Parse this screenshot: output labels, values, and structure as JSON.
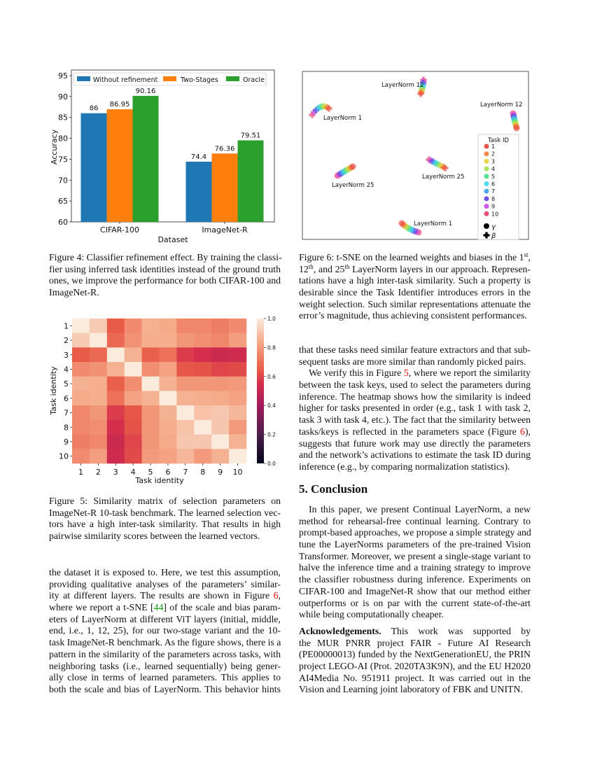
{
  "colors": {
    "without_refinement": "#1f77b4",
    "two_stages": "#ff7f0e",
    "oracle": "#2ca02c",
    "reference_link": "#e00000",
    "citation_link": "#00a000",
    "task_colors": [
      "#e8413c",
      "#f07a35",
      "#e8d23a",
      "#a3e048",
      "#3fe08a",
      "#3ad9ec",
      "#3d9bea",
      "#5d3fe0",
      "#c948e8",
      "#e8386e"
    ]
  },
  "chart_data": [
    {
      "type": "bar",
      "xlabel": "Dataset",
      "ylabel": "Accuracy",
      "ylim": [
        60,
        95
      ],
      "yticks": [
        "60",
        "65",
        "70",
        "75",
        "80",
        "85",
        "90",
        "95"
      ],
      "categories": [
        "CIFAR-100",
        "ImageNet-R"
      ],
      "legend_position": "top",
      "series": [
        {
          "name": "Without refinement",
          "values": [
            86,
            74.4
          ],
          "labels": [
            "86",
            "74.4"
          ]
        },
        {
          "name": "Two-Stages",
          "values": [
            86.95,
            76.36
          ],
          "labels": [
            "86.95",
            "76.36"
          ]
        },
        {
          "name": "Oracle",
          "values": [
            90.16,
            79.51
          ],
          "labels": [
            "90.16",
            "79.51"
          ]
        }
      ]
    },
    {
      "type": "scatter",
      "legend_title": "Task ID",
      "legend_position": "right",
      "task_ids": [
        "1",
        "2",
        "3",
        "4",
        "5",
        "6",
        "7",
        "8",
        "9",
        "10"
      ],
      "marker_legend": [
        {
          "marker": "circle",
          "label": "γ"
        },
        {
          "marker": "plus",
          "label": "β"
        }
      ],
      "clusters": [
        {
          "label": "LayerNorm 12",
          "marker": "plus"
        },
        {
          "label": "LayerNorm 1",
          "marker": "plus"
        },
        {
          "label": "LayerNorm 12",
          "marker": "circle"
        },
        {
          "label": "LayerNorm 25",
          "marker": "plus"
        },
        {
          "label": "LayerNorm 25",
          "marker": "circle"
        },
        {
          "label": "LayerNorm 1",
          "marker": "circle"
        }
      ]
    },
    {
      "type": "heatmap",
      "xlabel": "Task identity",
      "ylabel": "Task identity",
      "x_categories": [
        "1",
        "2",
        "3",
        "4",
        "5",
        "6",
        "7",
        "8",
        "9",
        "10"
      ],
      "y_categories": [
        "1",
        "2",
        "3",
        "4",
        "5",
        "6",
        "7",
        "8",
        "9",
        "10"
      ],
      "colorbar_range": [
        0.0,
        1.0
      ],
      "colorbar_ticks": [
        "0.0",
        "0.2",
        "0.4",
        "0.6",
        "0.8",
        "1.0"
      ],
      "colormap": "rocket",
      "values": [
        [
          1.0,
          0.92,
          0.65,
          0.76,
          0.86,
          0.84,
          0.75,
          0.75,
          0.73,
          0.76
        ],
        [
          0.92,
          1.0,
          0.68,
          0.78,
          0.85,
          0.85,
          0.79,
          0.77,
          0.75,
          0.81
        ],
        [
          0.65,
          0.68,
          1.0,
          0.86,
          0.66,
          0.7,
          0.58,
          0.55,
          0.52,
          0.53
        ],
        [
          0.76,
          0.78,
          0.86,
          1.0,
          0.77,
          0.82,
          0.64,
          0.63,
          0.6,
          0.61
        ],
        [
          0.86,
          0.85,
          0.66,
          0.77,
          1.0,
          0.86,
          0.79,
          0.79,
          0.79,
          0.8
        ],
        [
          0.84,
          0.85,
          0.7,
          0.82,
          0.86,
          1.0,
          0.86,
          0.85,
          0.84,
          0.82
        ],
        [
          0.75,
          0.79,
          0.58,
          0.64,
          0.79,
          0.86,
          1.0,
          0.9,
          0.91,
          0.87
        ],
        [
          0.75,
          0.77,
          0.55,
          0.63,
          0.79,
          0.85,
          0.9,
          1.0,
          0.91,
          0.8
        ],
        [
          0.73,
          0.75,
          0.52,
          0.6,
          0.79,
          0.84,
          0.91,
          0.91,
          1.0,
          0.86
        ],
        [
          0.76,
          0.81,
          0.53,
          0.61,
          0.8,
          0.82,
          0.87,
          0.8,
          0.86,
          1.0
        ]
      ]
    }
  ],
  "fig4_caption": [
    [
      "Figure 4: Classifier refinement effect. By training the classi-",
      "fier using inferred task identities instead of the ground truth",
      "ones, we improve the performance for both CIFAR-100 and",
      "ImageNet-R."
    ]
  ],
  "fig6_caption": [
    [
      [
        {
          "t": "Figure 6: t-SNE on the learned weights and biases in the 1"
        },
        {
          "t": "st",
          "c": "sup"
        },
        {
          "t": ","
        }
      ],
      [
        {
          "t": "12"
        },
        {
          "t": "th",
          "c": "sup"
        },
        {
          "t": ", and 25"
        },
        {
          "t": "th",
          "c": "sup"
        },
        {
          "t": " LayerNorm layers in our approach. Represen-"
        }
      ],
      "tations have a high inter-task similarity. Such a property is",
      "desirable since the Task Identifier introduces errors in the",
      "weight selection. Such similar representations attenuate the",
      "error’s magnitude, thus achieving consistent performances."
    ]
  ],
  "fig5_caption": [
    [
      "Figure 5: Similarity matrix of selection parameters on",
      "ImageNet-R 10-task benchmark. The learned selection vec-",
      "tors have a high inter-task similarity. That results in high",
      "pairwise similarity scores between the learned vectors."
    ]
  ],
  "left_body": [
    [
      "the dataset it is exposed to. Here, we test this assumption,",
      "providing qualitative analyses of the parameters’ similar-",
      [
        {
          "t": "ity at different layers. The results are shown in Figure "
        },
        {
          "t": "6",
          "c": "ref"
        },
        {
          "t": ","
        }
      ],
      [
        {
          "t": "where we report a t-SNE ["
        },
        {
          "t": "44",
          "c": "cite"
        },
        {
          "t": "] of the scale and bias param-"
        }
      ],
      "eters of LayerNorm at different ViT layers (initial, middle,",
      "end, i.e., 1, 12, 25), for our two-stage variant and the 10-",
      "task ImageNet-R benchmark. As the figure shows, there is a",
      "pattern in the similarity of the parameters across tasks, with",
      "neighboring tasks (i.e., learned sequentially) being gener-",
      "ally close in terms of learned parameters. This applies to",
      "both the scale and bias of LayerNorm. This behavior hints"
    ]
  ],
  "right_body_cont": [
    [
      "that these tasks need similar feature extractors and that sub-",
      "sequent tasks are more similar than randomly picked pairs."
    ]
  ],
  "right_body_verify": [
    [
      [
        {
          "t": "We verify this in Figure "
        },
        {
          "t": "5",
          "c": "ref"
        },
        {
          "t": ", where we report the similarity"
        }
      ],
      "between the task keys, used to select the parameters during",
      "inference. The heatmap shows how the similarity is indeed",
      "higher for tasks presented in order (e.g., task 1 with task 2,",
      "task 3 with task 4, etc.). The fact that the similarity between",
      [
        {
          "t": "tasks/keys is reflected in the parameters space (Figure "
        },
        {
          "t": "6",
          "c": "ref"
        },
        {
          "t": "),"
        }
      ],
      "suggests that future work may use directly the parameters",
      "and the network’s activations to estimate the task ID during",
      "inference (e.g., by comparing normalization statistics)."
    ]
  ],
  "conclusion_heading": "5. Conclusion",
  "conclusion_body": [
    [
      "In this paper, we present Continual LayerNorm, a new",
      "method for rehearsal-free continual learning. Contrary to",
      "prompt-based approaches, we propose a simple strategy and",
      "tune the LayerNorms parameters of the pre-trained Vision",
      "Transformer. Moreover, we present a single-stage variant to",
      "halve the inference time and a training strategy to improve",
      "the classifier robustness during inference. Experiments on",
      "CIFAR-100 and ImageNet-R show that our method either",
      "outperforms or is on par with the current state-of-the-art",
      "while being computationally cheaper."
    ]
  ],
  "acknowledgements": [
    [
      [
        {
          "t": "Acknowledgements.",
          "c": "bold"
        },
        {
          "t": "      This work was supported by"
        }
      ],
      "the MUR PNRR project FAIR - Future AI Research",
      "(PE00000013) funded by the NextGenerationEU, the PRIN",
      "project LEGO-AI (Prot. 2020TA3K9N), and the EU H2020",
      "AI4Media No. 951911 project. It was carried out in the",
      "Vision and Learning joint laboratory of FBK and UNITN."
    ]
  ]
}
